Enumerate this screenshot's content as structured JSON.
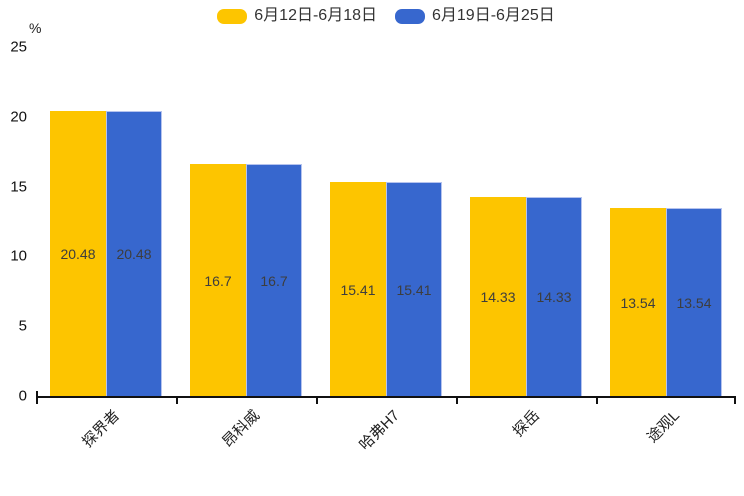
{
  "chart_data": {
    "type": "bar",
    "title": "",
    "categories": [
      "探界者",
      "昂科威",
      "哈弗H7",
      "探岳",
      "途观L"
    ],
    "series": [
      {
        "name": "6月12日-6月18日",
        "color": "#FDC500",
        "border_color": "",
        "values": [
          20.48,
          16.7,
          15.41,
          14.33,
          13.54
        ]
      },
      {
        "name": "6月19日-6月25日",
        "color": "#3767CE",
        "border_color": "#B5C3EE",
        "values": [
          20.48,
          16.7,
          15.41,
          14.33,
          13.54
        ]
      }
    ],
    "value_labels": [
      [
        "20.48",
        "16.7",
        "15.41",
        "14.33",
        "13.54"
      ],
      [
        "20.48",
        "16.7",
        "15.41",
        "14.33",
        "13.54"
      ]
    ],
    "xlabel": "",
    "ylabel": "%",
    "ylim": [
      0,
      25
    ],
    "yticks": [
      0,
      5,
      10,
      15,
      20,
      25
    ],
    "legend_position": "top-center",
    "grid": false,
    "styles": {
      "value_label_color": "#3d3d3d",
      "axis_color": "#111111",
      "legend_text_color": "#333333"
    }
  }
}
